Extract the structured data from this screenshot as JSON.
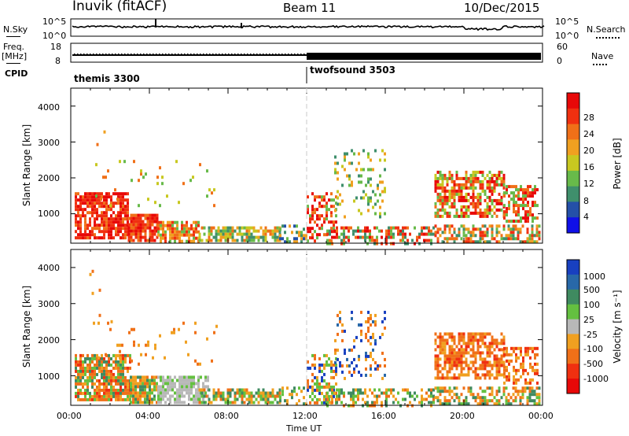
{
  "header": {
    "station": "Inuvik (fitACF)",
    "beam": "Beam 11",
    "date": "10/Dec/2015"
  },
  "summary_panels": {
    "nsky": {
      "label": "N.Sky",
      "ticks": [
        "10^5",
        "10^0"
      ]
    },
    "nsearch": {
      "label": "N.Search",
      "ticks": [
        "10^5",
        "10^0"
      ]
    },
    "freq": {
      "label_line1": "Freq.",
      "label_line2": "[MHz]",
      "ticks": [
        "18",
        "8"
      ]
    },
    "nave": {
      "label": "Nave",
      "ticks": [
        "60",
        "0"
      ]
    },
    "cpid": {
      "label": "CPID",
      "modes": [
        {
          "name": "themis 3300",
          "start_hour": 0
        },
        {
          "name": "twofsound 3503",
          "start_hour": 12
        }
      ]
    }
  },
  "chart_data": [
    {
      "type": "heatmap",
      "quantity": "power",
      "ylabel": "Slant Range [km]",
      "xlabel": "",
      "xlim": [
        0,
        24
      ],
      "ylim": [
        180,
        4500
      ],
      "y_ticks": [
        1000,
        2000,
        3000,
        4000
      ],
      "colorbar": {
        "label": "Power [dB]",
        "ticks": [
          "4",
          "8",
          "12",
          "16",
          "20",
          "24",
          "28"
        ],
        "colors": [
          "#1010e8",
          "#2450a8",
          "#3f8f6c",
          "#68ba4a",
          "#c8c820",
          "#f0a020",
          "#f07018",
          "#f03010",
          "#e80808"
        ]
      }
    },
    {
      "type": "heatmap",
      "quantity": "velocity",
      "ylabel": "Slant Range [km]",
      "xlabel": "Time UT",
      "xlim": [
        0,
        24
      ],
      "ylim": [
        180,
        4500
      ],
      "y_ticks": [
        1000,
        2000,
        3000,
        4000
      ],
      "x_ticks": [
        "00:00",
        "04:00",
        "08:00",
        "12:00",
        "16:00",
        "20:00",
        "00:00"
      ],
      "colorbar": {
        "label": "Velocity [m s⁻¹]",
        "ticks": [
          "1000",
          "500",
          "100",
          "25",
          "-25",
          "-100",
          "-500",
          "-1000"
        ],
        "colors": [
          "#1840c0",
          "#2868a8",
          "#3f8a60",
          "#64c040",
          "#b8b8b8",
          "#f0a020",
          "#f07018",
          "#f03010",
          "#e80808"
        ]
      }
    }
  ]
}
